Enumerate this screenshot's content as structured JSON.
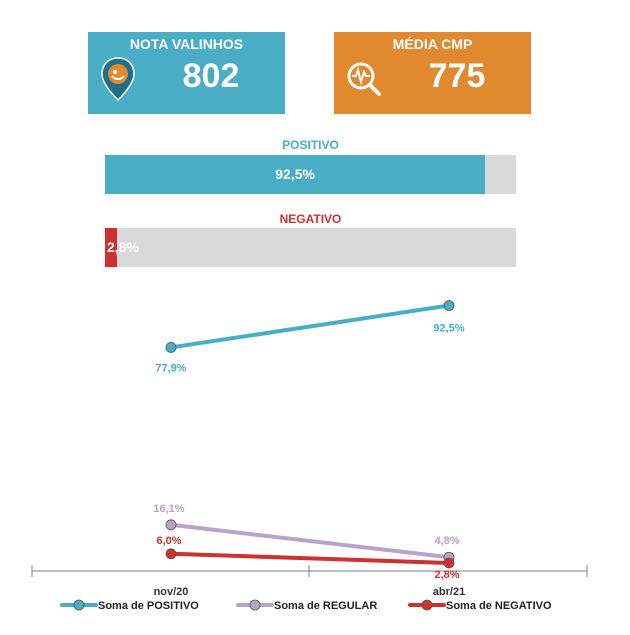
{
  "nota_card": {
    "title": "NOTA VALINHOS",
    "value": "802",
    "color": "#49adc6",
    "icon": "location-pin-face-icon"
  },
  "media_card": {
    "title": "MÉDIA CMP",
    "value": "775",
    "color": "#e0892f",
    "icon": "search-pulse-icon"
  },
  "positivo_bar": {
    "label": "POSITIVO",
    "text": "92,5%",
    "value": 92.5,
    "color": "#49adc6"
  },
  "negativo_bar": {
    "label": "NEGATIVO",
    "text": "2,8%",
    "value": 2.8,
    "color": "#cf3030"
  },
  "chart_data": {
    "type": "line",
    "categories": [
      "nov/20",
      "abr/21"
    ],
    "series": [
      {
        "name": "Soma de POSITIVO",
        "values": [
          77.9,
          92.5
        ],
        "labels": [
          "77,9%",
          "92,5%"
        ],
        "color": "#49adc6"
      },
      {
        "name": "Soma de REGULAR",
        "values": [
          16.1,
          4.8
        ],
        "labels": [
          "16,1%",
          "4,8%"
        ],
        "color": "#b7a3cc"
      },
      {
        "name": "Soma de NEGATIVO",
        "values": [
          6.0,
          2.8
        ],
        "labels": [
          "6,0%",
          "2,8%"
        ],
        "color": "#cf3030"
      }
    ],
    "ylim": [
      0,
      100
    ],
    "legend": "bottom",
    "grid": false
  }
}
